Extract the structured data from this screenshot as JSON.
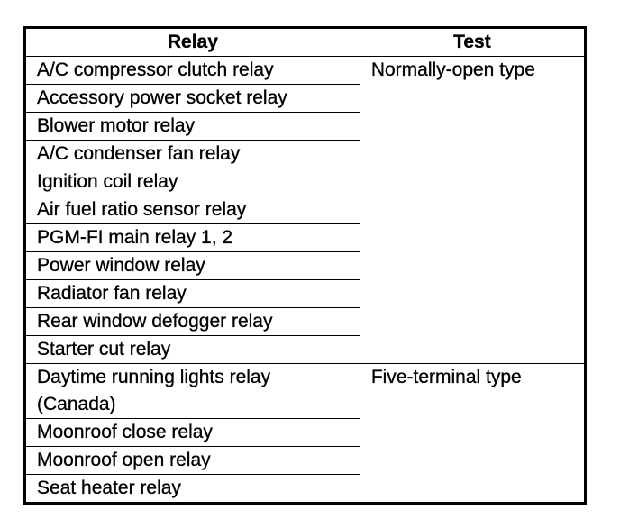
{
  "headers": {
    "relay": "Relay",
    "test": "Test"
  },
  "groups": [
    {
      "test": "Normally-open type",
      "relays": [
        "A/C compressor clutch relay",
        "Accessory power socket relay",
        "Blower motor relay",
        "A/C condenser fan relay",
        "Ignition coil relay",
        "Air fuel ratio sensor relay",
        "PGM-FI main relay 1, 2",
        "Power window relay",
        "Radiator fan relay",
        "Rear window defogger relay",
        "Starter cut relay"
      ]
    },
    {
      "test": "Five-terminal type",
      "relays": [
        "Daytime running lights relay (Canada)",
        "Moonroof close relay",
        "Moonroof open relay",
        "Seat heater relay"
      ]
    }
  ]
}
